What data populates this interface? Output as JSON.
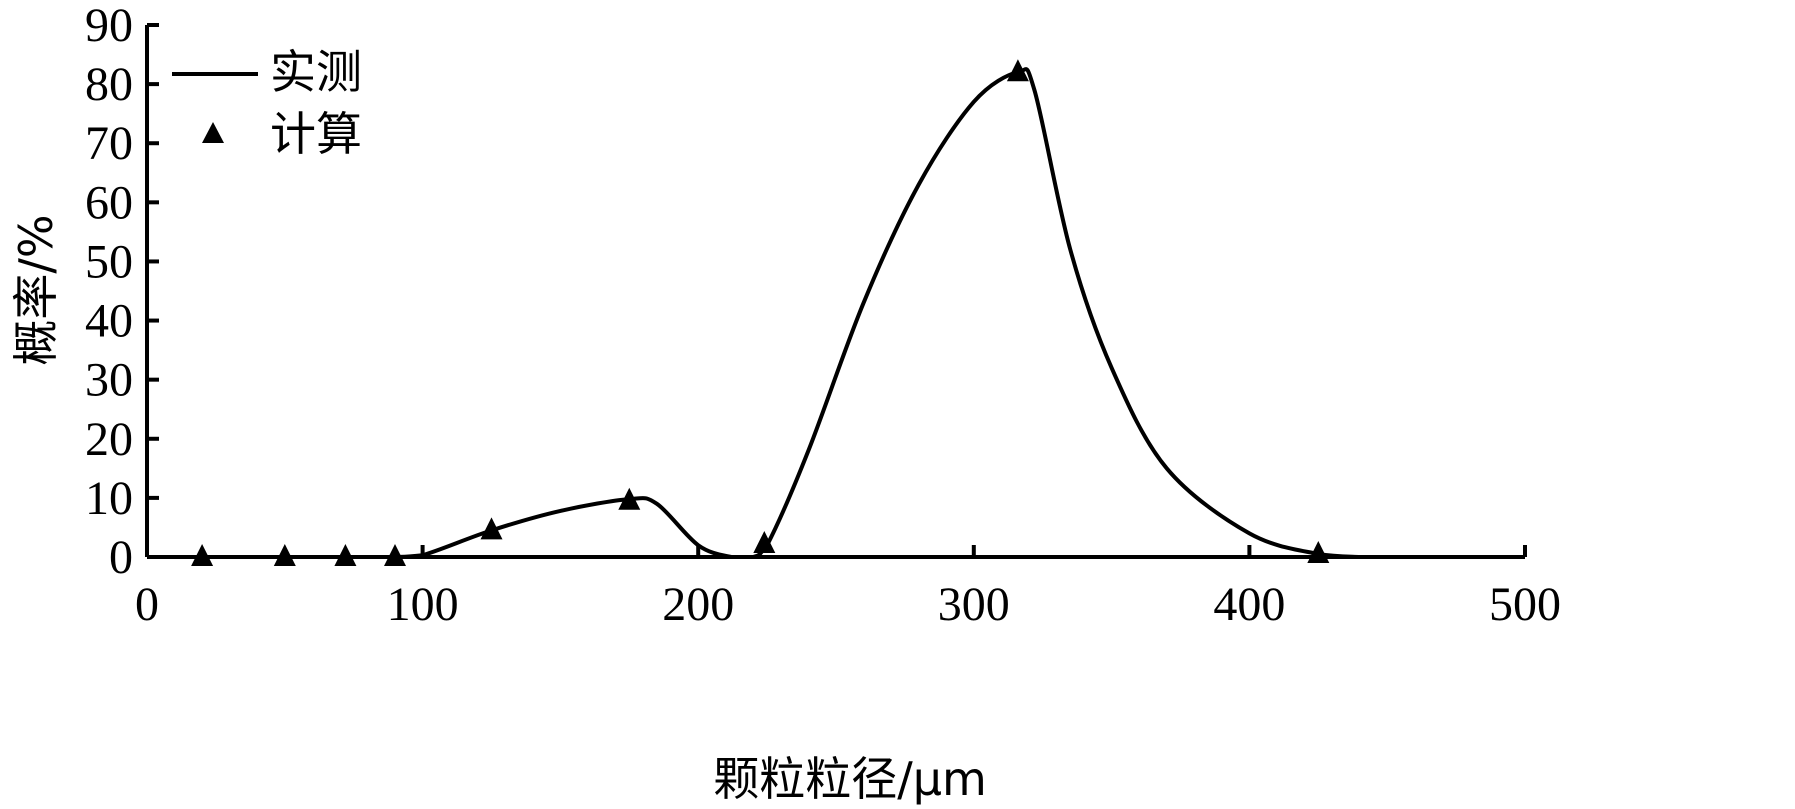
{
  "chart_data": {
    "type": "line",
    "title": "",
    "xlabel": "颗粒粒径/μm",
    "ylabel": "概率/%",
    "xlim": [
      0,
      500
    ],
    "ylim": [
      0,
      90
    ],
    "xticks": [
      0,
      100,
      200,
      300,
      400,
      500
    ],
    "yticks": [
      0,
      10,
      20,
      30,
      40,
      50,
      60,
      70,
      80,
      90
    ],
    "grid": false,
    "legend_position": "top-left",
    "series": [
      {
        "name": "实测",
        "style": "line",
        "color": "#000000",
        "x": [
          0,
          20,
          50,
          72,
          90,
          100,
          125,
          150,
          175,
          185,
          200,
          212,
          220,
          225,
          240,
          260,
          280,
          300,
          316,
          322,
          335,
          350,
          370,
          400,
          425,
          440
        ],
        "y": [
          0,
          0,
          0,
          0,
          0,
          0.3,
          4.5,
          7.8,
          9.8,
          9.0,
          2.0,
          0,
          0,
          2.0,
          18,
          43,
          63,
          77,
          82,
          79,
          52,
          32,
          15,
          4,
          0.5,
          0
        ]
      },
      {
        "name": "计算",
        "style": "marker-triangle",
        "color": "#000000",
        "x": [
          20,
          50,
          72,
          90,
          125,
          175,
          224,
          316,
          425
        ],
        "y": [
          0,
          0,
          0,
          0,
          4.5,
          9.5,
          2.2,
          82,
          0.5
        ]
      }
    ]
  }
}
